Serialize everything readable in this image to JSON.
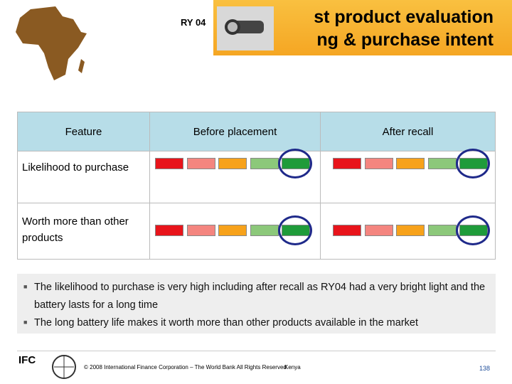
{
  "header": {
    "label": "RY 04",
    "title_line_1": "st product evaluation",
    "title_line_2": "ng & purchase intent"
  },
  "table": {
    "columns": [
      "Feature",
      "Before placement",
      "After recall"
    ],
    "rows": [
      [
        "Likelihood to purchase"
      ],
      [
        "Worth more than other products"
      ]
    ]
  },
  "bullets": [
    "The likelihood to purchase is very high including after recall as RY04 had a very bright light and the battery lasts for a long time",
    "The long battery life makes it worth more than other products available in the market"
  ],
  "footer": {
    "copyright": "© 2008 International Finance Corporation – The World Bank All Rights Reserved",
    "country": "Kenya",
    "page": "138",
    "logo_1": "IFC"
  }
}
